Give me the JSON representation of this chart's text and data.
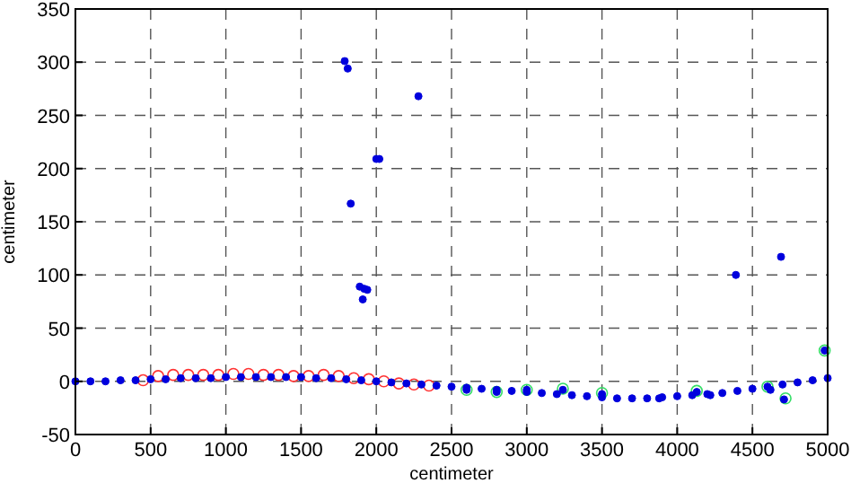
{
  "chart_data": {
    "type": "scatter",
    "xlabel": "centimeter",
    "ylabel": "centimeter",
    "xlim": [
      0,
      5000
    ],
    "ylim": [
      -50,
      350
    ],
    "xticks": [
      0,
      500,
      1000,
      1500,
      2000,
      2500,
      3000,
      3500,
      4000,
      4500,
      5000
    ],
    "yticks": [
      -50,
      0,
      50,
      100,
      150,
      200,
      250,
      300,
      350
    ],
    "grid": true,
    "marker": "circle",
    "series": [
      {
        "color": "#ff3333",
        "marker": "circle",
        "x": [
          450,
          550,
          650,
          750,
          850,
          950,
          1050,
          1150,
          1250,
          1350,
          1450,
          1550,
          1650,
          1750,
          1850,
          1950,
          2050,
          2150,
          2250,
          2350
        ],
        "values": [
          1,
          5,
          6,
          6,
          6,
          6,
          7,
          7,
          6,
          6,
          5,
          5,
          6,
          5,
          3,
          2,
          0,
          -2,
          -3,
          -4
        ]
      },
      {
        "color": "#33dd66",
        "marker": "circle",
        "x": [
          2600,
          2800,
          3000,
          3240,
          3500,
          4130,
          4600,
          4720,
          4980
        ],
        "values": [
          -8,
          -10,
          -8,
          -7,
          -11,
          -9,
          -5,
          -16,
          29
        ]
      },
      {
        "color": "#0000dd",
        "x": [
          0,
          100,
          200,
          300,
          400,
          500,
          600,
          700,
          800,
          900,
          1000,
          1100,
          1200,
          1300,
          1400,
          1500,
          1600,
          1700,
          1800,
          1900,
          2000,
          2100,
          2200,
          2300,
          2400,
          2500,
          2600,
          2700,
          2800,
          2900,
          3000,
          3100,
          3200,
          3300,
          3400,
          3500,
          3600,
          3700,
          3800,
          3900,
          4000,
          4100,
          4200,
          4300,
          4400,
          4500,
          4600,
          4700,
          4800,
          4900,
          5000,
          1790,
          1810,
          1830,
          1890,
          1920,
          1910,
          1940,
          2000,
          2020,
          2280,
          4390,
          4690,
          4980,
          4710,
          4620,
          2600,
          2800,
          3000,
          3240,
          3500,
          3880,
          4130,
          4220
        ],
        "values": [
          0,
          0,
          0,
          1,
          1,
          2,
          2,
          3,
          3,
          3,
          4,
          4,
          4,
          4,
          4,
          4,
          3,
          3,
          2,
          1,
          0,
          -1,
          -2,
          -3,
          -4,
          -5,
          -6,
          -7,
          -8,
          -9,
          -10,
          -11,
          -12,
          -13,
          -14,
          -15,
          -16,
          -16,
          -16,
          -15,
          -14,
          -13,
          -12,
          -11,
          -9,
          -7,
          -5,
          -3,
          -1,
          1,
          3,
          301,
          294,
          167,
          89,
          87,
          77,
          86,
          209,
          209,
          268,
          100,
          117,
          29,
          -17,
          -8,
          -8,
          -10,
          -8,
          -8,
          -12,
          -16,
          -10,
          -13
        ]
      }
    ]
  }
}
